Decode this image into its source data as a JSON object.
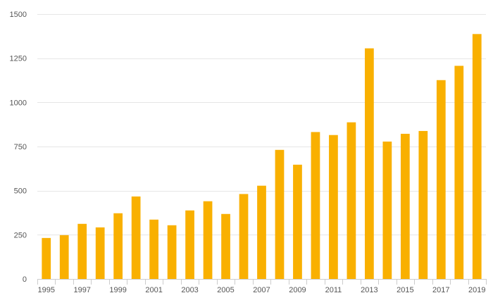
{
  "chart_data": {
    "type": "bar",
    "title": "",
    "xlabel": "",
    "ylabel": "",
    "categories": [
      "1995",
      "1996",
      "1997",
      "1998",
      "1999",
      "2000",
      "2001",
      "2002",
      "2003",
      "2004",
      "2005",
      "2006",
      "2007",
      "2008",
      "2009",
      "2010",
      "2011",
      "2012",
      "2013",
      "2014",
      "2015",
      "2016",
      "2017",
      "2018",
      "2019"
    ],
    "values": [
      232,
      248,
      312,
      292,
      372,
      467,
      336,
      304,
      388,
      440,
      368,
      481,
      528,
      731,
      647,
      832,
      815,
      887,
      1306,
      778,
      822,
      838,
      1126,
      1207,
      1387
    ],
    "x_tick_labels": [
      "1995",
      "1997",
      "1999",
      "2001",
      "2003",
      "2005",
      "2007",
      "2009",
      "2011",
      "2013",
      "2015",
      "2017",
      "2019"
    ],
    "y_ticks": [
      0,
      250,
      500,
      750,
      1000,
      1250,
      1500
    ],
    "y_tick_labels": [
      "0",
      "250",
      "500",
      "750",
      "1000",
      "1250",
      "1500"
    ],
    "ylim": [
      0,
      1500
    ],
    "grid": true,
    "legend": "none",
    "bar_color": "#F9B000"
  }
}
